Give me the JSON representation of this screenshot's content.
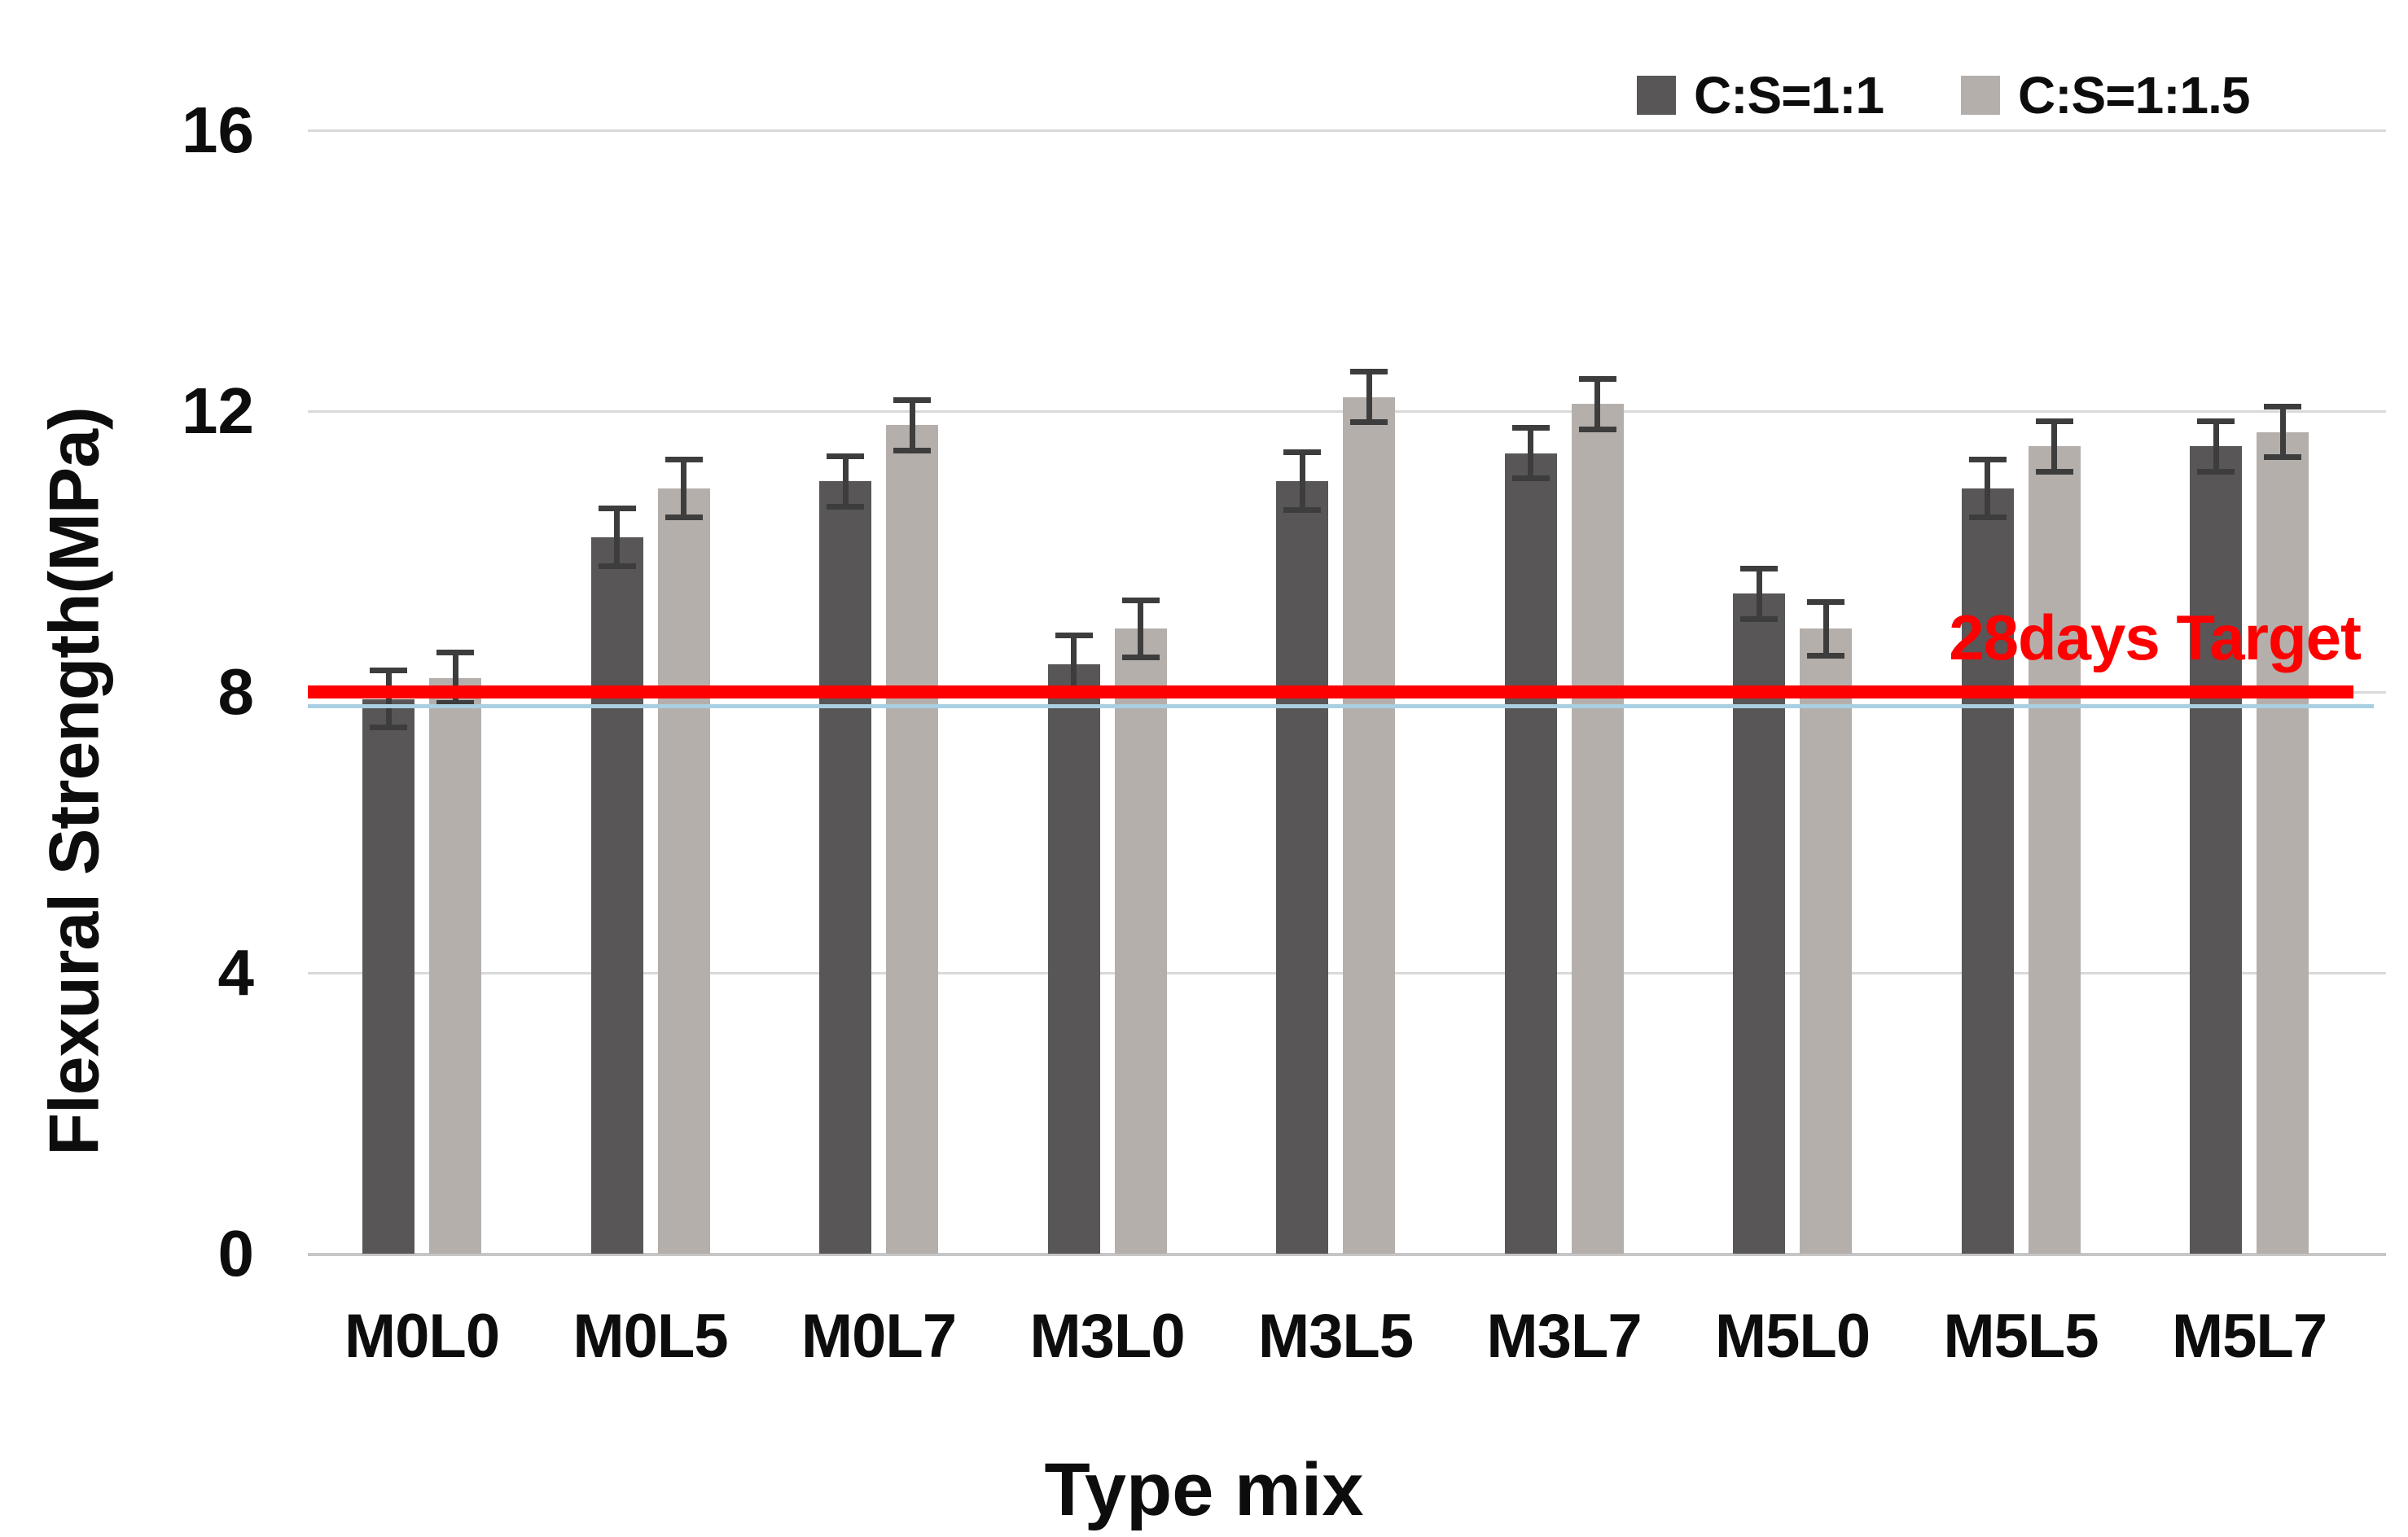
{
  "chart_data": {
    "type": "bar",
    "title": "",
    "xlabel": "Type mix",
    "ylabel": "Flexural Strength(MPa)",
    "categories": [
      "M0L0",
      "M0L5",
      "M0L7",
      "M3L0",
      "M3L5",
      "M3L7",
      "M5L0",
      "M5L5",
      "M5L7"
    ],
    "series": [
      {
        "name": "C:S=1:1",
        "color": "#595657",
        "values": [
          7.9,
          10.2,
          11.0,
          8.4,
          11.0,
          11.4,
          9.4,
          10.9,
          11.5
        ],
        "errors": [
          0.45,
          0.45,
          0.4,
          0.45,
          0.45,
          0.4,
          0.4,
          0.45,
          0.4
        ]
      },
      {
        "name": "C:S=1:1.5",
        "color": "#b5afac",
        "values": [
          8.2,
          10.9,
          11.8,
          8.9,
          12.2,
          12.1,
          8.9,
          11.5,
          11.7
        ],
        "errors": [
          0.4,
          0.45,
          0.4,
          0.45,
          0.4,
          0.4,
          0.42,
          0.4,
          0.4
        ]
      }
    ],
    "ylim": [
      0,
      16
    ],
    "yticks": [
      0,
      4,
      8,
      12,
      16
    ],
    "grid": true,
    "legend_position": "top-right",
    "error_bar_color": "#3d3d3d",
    "gridline_color": "#d9d9d9",
    "reference_line": {
      "value": 8,
      "color": "#ff0000",
      "label": "28days Target"
    },
    "secondary_reference_line": {
      "value": 7.8,
      "color": "#a9cfe2"
    }
  }
}
